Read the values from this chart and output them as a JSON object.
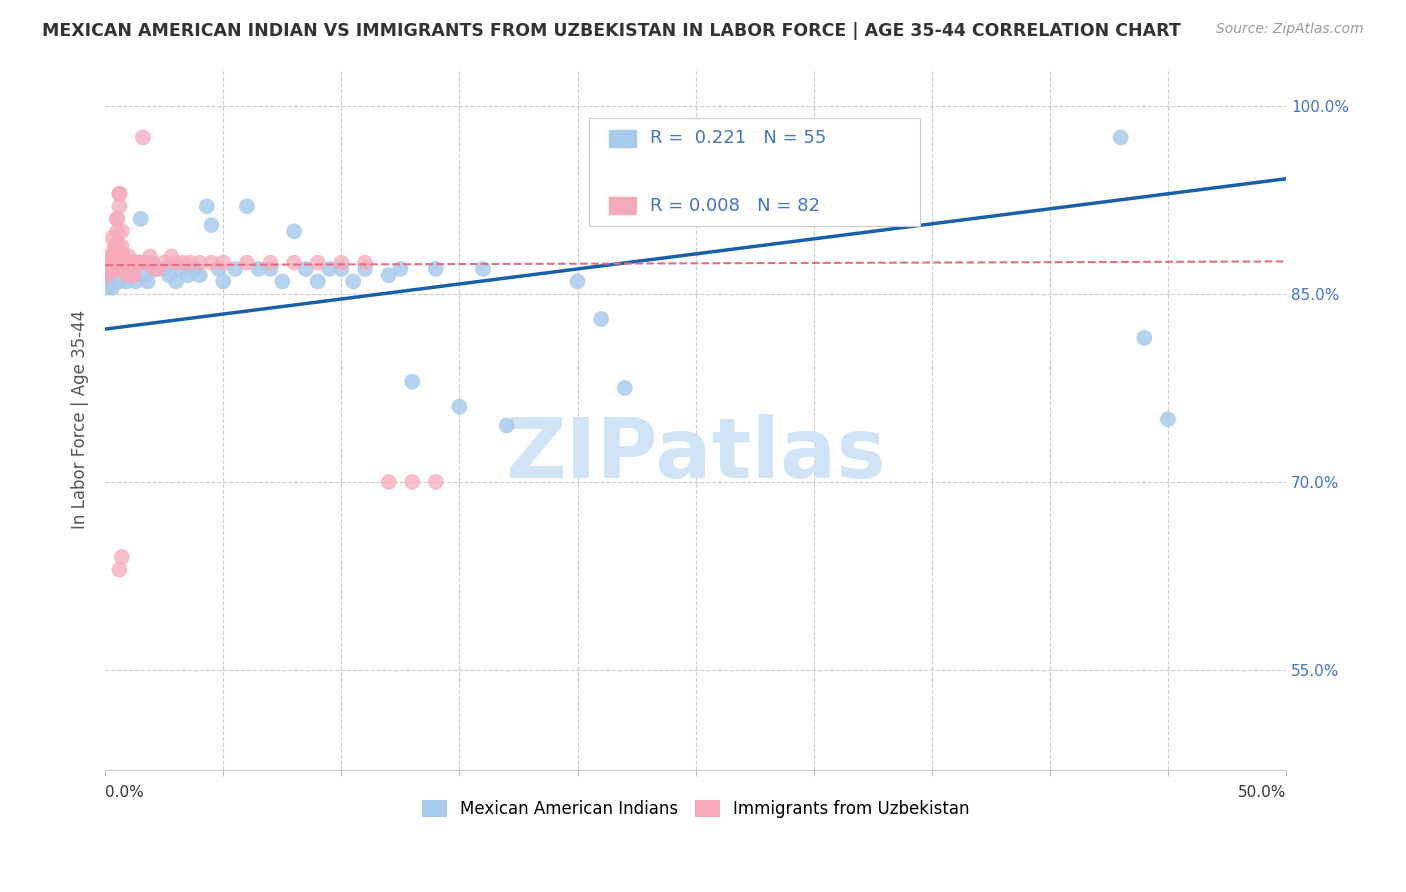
{
  "title": "MEXICAN AMERICAN INDIAN VS IMMIGRANTS FROM UZBEKISTAN IN LABOR FORCE | AGE 35-44 CORRELATION CHART",
  "source": "Source: ZipAtlas.com",
  "ylabel": "In Labor Force | Age 35-44",
  "xlim": [
    0.0,
    0.5
  ],
  "ylim": [
    0.47,
    1.03
  ],
  "ytick_positions": [
    0.55,
    0.7,
    0.85,
    1.0
  ],
  "ytick_labels": [
    "55.0%",
    "70.0%",
    "85.0%",
    "100.0%"
  ],
  "grid_yticks": [
    0.55,
    0.7,
    0.85,
    1.0
  ],
  "xtick_labels_edge": [
    "0.0%",
    "50.0%"
  ],
  "blue_color": "#A8CAEC",
  "pink_color": "#F5AABB",
  "blue_line_color": "#1B5FAA",
  "pink_line_color": "#E07080",
  "blue_R": 0.221,
  "blue_N": 55,
  "pink_R": 0.008,
  "pink_N": 82,
  "watermark": "ZIPatlas",
  "watermark_color": "#D0E4F5",
  "legend_label_blue": "Mexican American Indians",
  "legend_label_pink": "Immigrants from Uzbekistan",
  "blue_line_x0": 0.0,
  "blue_line_y0": 0.822,
  "blue_line_x1": 0.5,
  "blue_line_y1": 0.942,
  "pink_line_x0": 0.0,
  "pink_line_y0": 0.873,
  "pink_line_x1": 0.5,
  "pink_line_y1": 0.876,
  "blue_x": [
    0.001,
    0.002,
    0.003,
    0.004,
    0.005,
    0.006,
    0.007,
    0.008,
    0.009,
    0.01,
    0.012,
    0.013,
    0.015,
    0.017,
    0.018,
    0.02,
    0.022,
    0.025,
    0.027,
    0.03,
    0.032,
    0.035,
    0.038,
    0.04,
    0.043,
    0.045,
    0.048,
    0.05,
    0.055,
    0.06,
    0.065,
    0.07,
    0.075,
    0.08,
    0.085,
    0.09,
    0.095,
    0.1,
    0.105,
    0.11,
    0.12,
    0.125,
    0.13,
    0.14,
    0.15,
    0.16,
    0.17,
    0.2,
    0.21,
    0.22,
    0.29,
    0.32,
    0.43,
    0.44,
    0.45
  ],
  "blue_y": [
    0.855,
    0.865,
    0.855,
    0.87,
    0.875,
    0.86,
    0.87,
    0.87,
    0.86,
    0.865,
    0.865,
    0.86,
    0.91,
    0.865,
    0.86,
    0.87,
    0.87,
    0.87,
    0.865,
    0.86,
    0.87,
    0.865,
    0.87,
    0.865,
    0.92,
    0.905,
    0.87,
    0.86,
    0.87,
    0.92,
    0.87,
    0.87,
    0.86,
    0.9,
    0.87,
    0.86,
    0.87,
    0.87,
    0.86,
    0.87,
    0.865,
    0.87,
    0.78,
    0.87,
    0.76,
    0.87,
    0.745,
    0.86,
    0.83,
    0.775,
    0.975,
    0.975,
    0.975,
    0.815,
    0.75
  ],
  "pink_x": [
    0.0005,
    0.001,
    0.001,
    0.001,
    0.001,
    0.001,
    0.002,
    0.002,
    0.002,
    0.002,
    0.002,
    0.002,
    0.003,
    0.003,
    0.003,
    0.003,
    0.004,
    0.004,
    0.004,
    0.004,
    0.005,
    0.005,
    0.005,
    0.005,
    0.006,
    0.006,
    0.006,
    0.007,
    0.007,
    0.007,
    0.007,
    0.008,
    0.008,
    0.008,
    0.009,
    0.009,
    0.01,
    0.01,
    0.011,
    0.011,
    0.012,
    0.012,
    0.013,
    0.013,
    0.014,
    0.015,
    0.016,
    0.017,
    0.018,
    0.019,
    0.02,
    0.021,
    0.022,
    0.025,
    0.028,
    0.03,
    0.033,
    0.036,
    0.04,
    0.045,
    0.05,
    0.06,
    0.07,
    0.08,
    0.09,
    0.1,
    0.11,
    0.12,
    0.13,
    0.14,
    0.001,
    0.002,
    0.002,
    0.003,
    0.003,
    0.004,
    0.004,
    0.005,
    0.005,
    0.006,
    0.006,
    0.007
  ],
  "pink_y": [
    0.875,
    0.87,
    0.875,
    0.865,
    0.875,
    0.87,
    0.875,
    0.88,
    0.87,
    0.875,
    0.875,
    0.875,
    0.895,
    0.88,
    0.875,
    0.875,
    0.885,
    0.888,
    0.875,
    0.875,
    0.91,
    0.9,
    0.89,
    0.91,
    0.93,
    0.92,
    0.93,
    0.875,
    0.882,
    0.888,
    0.9,
    0.875,
    0.875,
    0.87,
    0.875,
    0.865,
    0.875,
    0.88,
    0.875,
    0.875,
    0.865,
    0.865,
    0.875,
    0.875,
    0.875,
    0.875,
    0.975,
    0.875,
    0.875,
    0.88,
    0.875,
    0.87,
    0.87,
    0.875,
    0.88,
    0.875,
    0.875,
    0.875,
    0.875,
    0.875,
    0.875,
    0.875,
    0.875,
    0.875,
    0.875,
    0.875,
    0.875,
    0.7,
    0.7,
    0.7,
    0.87,
    0.87,
    0.87,
    0.87,
    0.87,
    0.87,
    0.87,
    0.87,
    0.87,
    0.87,
    0.63,
    0.64
  ]
}
